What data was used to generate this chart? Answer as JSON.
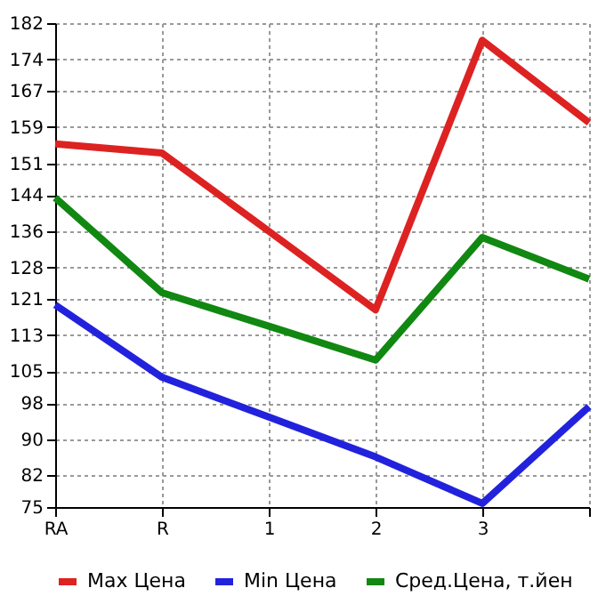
{
  "chart_data": {
    "type": "line",
    "categories": [
      "RA",
      "R",
      "1",
      "2",
      "3",
      null
    ],
    "series": [
      {
        "name": "Max Цена",
        "color": "#dd2222",
        "values": [
          155.3,
          153.3,
          136,
          118.6,
          178.2,
          160
        ]
      },
      {
        "name": "Min Цена",
        "color": "#2222dd",
        "values": [
          119.7,
          103.7,
          94.9,
          86.1,
          75.8,
          97.2
        ]
      },
      {
        "name": "Сред.Цена, т.йен",
        "color": "#118811",
        "values": [
          143.4,
          122.4,
          115,
          107.5,
          134.6,
          125.4
        ]
      }
    ],
    "ylim": [
      75,
      182
    ],
    "yticks": [
      75,
      82,
      90,
      98,
      105,
      113,
      121,
      128,
      136,
      144,
      151,
      159,
      167,
      174,
      182
    ],
    "grid": true,
    "legend": "bottom",
    "marker": "none",
    "line_style": "solid"
  }
}
